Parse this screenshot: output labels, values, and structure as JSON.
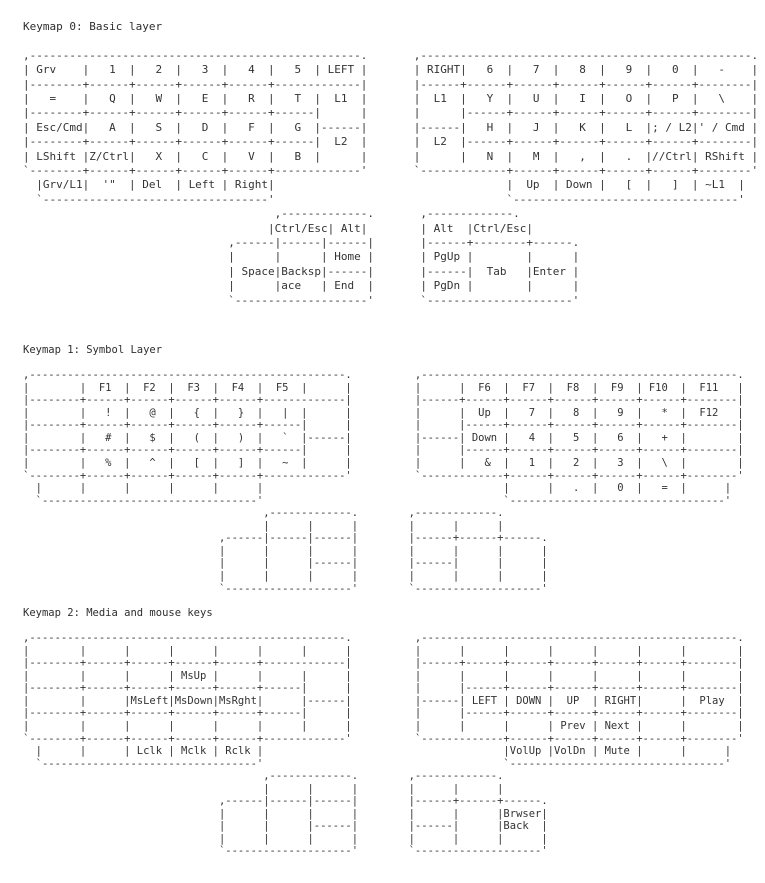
{
  "page": {
    "background_color": "#ffffff",
    "text_color": "#333333"
  },
  "keymaps": [
    {
      "title": "Keymap 0: Basic layer",
      "lines": [
        ",--------------------------------------------------.       ,--------------------------------------------------.",
        "| Grv    |   1  |   2  |   3  |   4  |   5  | LEFT |       | RIGHT|   6  |   7  |   8  |   9  |   0  |   -    |",
        "|--------+------+------+------+------+-------------|       |------+------+------+------+------+------+--------|",
        "|   =    |   Q  |   W  |   E  |   R  |   T  |  L1  |       |  L1  |   Y  |   U  |   I  |   O  |   P  |   \\    |",
        "|--------+------+------+------+------+------|      |       |      |------+------+------+------+------+--------|",
        "| Esc/Cmd|   A  |   S  |   D  |   F  |   G  |------|       |------|   H  |   J  |   K  |   L  |; / L2|' / Cmd |",
        "|--------+------+------+------+------+------|  L2  |       |  L2  |------+------+------+------+------+--------|",
        "| LShift |Z/Ctrl|   X  |   C  |   V  |   B  |      |       |      |   N  |   M  |   ,  |   .  |//Ctrl| RShift |",
        "`--------+------+------+------+------+-------------'       `-------------+------+------+------+------+--------'",
        "  |Grv/L1|  '\"  | Del  | Left | Right|                                   |  Up  | Down |   [  |   ]  | ~L1  |",
        "  `----------------------------------'                                   `----------------------------------'",
        "                                      ,-------------.       ,-------------.",
        "                                     |Ctrl/Esc| Alt|        | Alt  |Ctrl/Esc|",
        "                               ,------|------|------|       |------+--------+------.",
        "                               |      |      | Home |       | PgUp |        |      |",
        "                               | Space|Backsp|------|       |------|  Tab   |Enter |",
        "                               |      |ace   | End  |       | PgDn |        |      |",
        "                               `--------------------'       `----------------------'"
      ]
    },
    {
      "title": "Keymap 1: Symbol Layer",
      "lines": [
        ",--------------------------------------------------.          ,--------------------------------------------------.",
        "|        |  F1  |  F2  |  F3  |  F4  |  F5  |      |          |      |  F6  |  F7  |  F8  |  F9  | F10  |  F11   |",
        "|--------+------+------+------+------+-------------|          |------+------+------+------+------+------+--------|",
        "|        |   !  |   @  |   {  |   }  |   |  |      |          |      |  Up  |   7  |   8  |   9  |   *  |  F12   |",
        "|--------+------+------+------+------+------|      |          |      |------+------+------+------+------+--------|",
        "|        |   #  |   $  |   (  |   )  |   `  |------|          |------| Down |   4  |   5  |   6  |   +  |        |",
        "|--------+------+------+------+------+------|      |          |      |------+------+------+------+------+--------|",
        "|        |   %  |   ^  |   [  |   ]  |   ~  |      |          |      |   &  |   1  |   2  |   3  |   \\  |        |",
        "`--------+------+------+------+------+-------------'          `-------------+------+------+------+------+--------'",
        "  |      |      |      |      |      |                                      |      |   .  |   0  |   =  |      |",
        "  `----------------------------------'                                      `----------------------------------'",
        "                                      ,-------------.        ,-------------.",
        "                                      |      |      |        |      |      |",
        "                               ,------|------|------|        |------+------+------.",
        "                               |      |      |      |        |      |      |      |",
        "                               |      |      |------|        |------|      |      |",
        "                               |      |      |      |        |      |      |      |",
        "                               `--------------------'        `--------------------'"
      ]
    },
    {
      "title": "Keymap 2: Media and mouse keys",
      "lines": [
        ",--------------------------------------------------.          ,--------------------------------------------------.",
        "|        |      |      |      |      |      |      |          |      |      |      |      |      |      |        |",
        "|--------+------+------+------+------+-------------|          |------+------+------+------+------+------+--------|",
        "|        |      |      | MsUp |      |      |      |          |      |      |      |      |      |      |        |",
        "|--------+------+------+------+------+------|      |          |      |------+------+------+------+------+--------|",
        "|        |      |MsLeft|MsDown|MsRght|      |------|          |------| LEFT | DOWN |  UP  | RIGHT|      |  Play  |",
        "|--------+------+------+------+------+------|      |          |      |------+------+------+------+------+--------|",
        "|        |      |      |      |      |      |      |          |      |      |      | Prev | Next |      |        |",
        "`--------+------+------+------+------+-------------'          `-------------+------+------+------+------+--------'",
        "  |      |      | Lclk | Mclk | Rclk |                                      |VolUp |VolDn | Mute |      |      |",
        "  `----------------------------------'                                      `----------------------------------'",
        "                                      ,-------------.        ,-------------.",
        "                                      |      |      |        |      |      |",
        "                               ,------|------|------|        |------+------+------.",
        "                               |      |      |      |        |      |      |Brwser|",
        "                               |      |      |------|        |------|      |Back  |",
        "                               |      |      |      |        |      |      |      |",
        "                               `--------------------'        `--------------------'"
      ]
    }
  ]
}
